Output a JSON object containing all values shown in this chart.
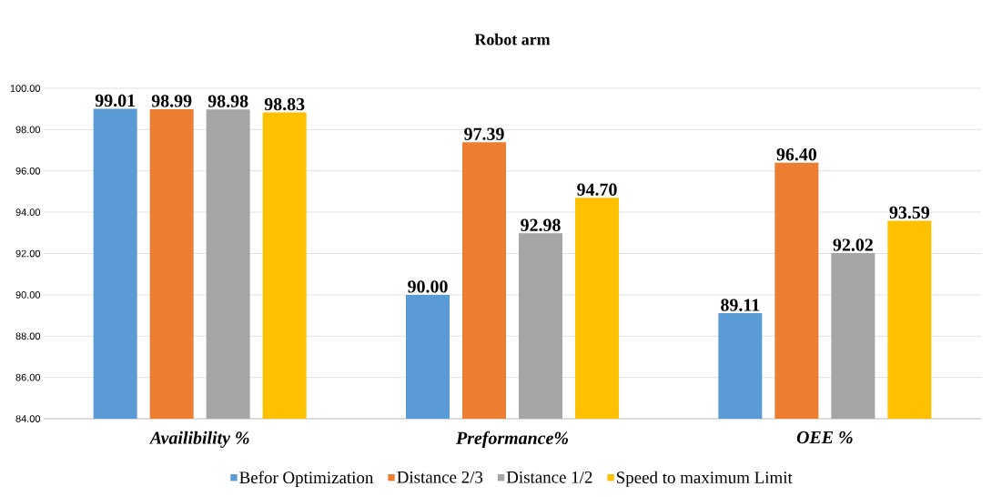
{
  "chart_data": {
    "type": "bar",
    "title": "Robot arm",
    "categories": [
      "Availibility %",
      "Preformance%",
      "OEE   %"
    ],
    "series": [
      {
        "name": "Befor Optimization",
        "color": "#5b9bd5",
        "values": [
          99.01,
          90.0,
          89.11
        ],
        "value_labels": [
          "99.01",
          "90.00",
          "89.11"
        ]
      },
      {
        "name": "Distance 2/3",
        "color": "#ed7d31",
        "values": [
          98.99,
          97.39,
          96.4
        ],
        "value_labels": [
          "98.99",
          "97.39",
          "96.40"
        ]
      },
      {
        "name": "Distance 1/2",
        "color": "#a5a5a5",
        "values": [
          98.98,
          92.98,
          92.02
        ],
        "value_labels": [
          "98.98",
          "92.98",
          "92.02"
        ]
      },
      {
        "name": "Speed to maximum Limit",
        "color": "#ffc000",
        "values": [
          98.83,
          94.7,
          93.59
        ],
        "value_labels": [
          "98.83",
          "94.70",
          "93.59"
        ]
      }
    ],
    "ylim": [
      84,
      100
    ],
    "yticks": [
      {
        "value": 84,
        "label": "84.00"
      },
      {
        "value": 86,
        "label": "86.00"
      },
      {
        "value": 88,
        "label": "88.00"
      },
      {
        "value": 90,
        "label": "90.00"
      },
      {
        "value": 92,
        "label": "92.00"
      },
      {
        "value": 94,
        "label": "94.00"
      },
      {
        "value": 96,
        "label": "96.00"
      },
      {
        "value": 98,
        "label": "98.00"
      },
      {
        "value": 100,
        "label": "100.00"
      }
    ],
    "grid": "y",
    "legend": "bottom"
  }
}
